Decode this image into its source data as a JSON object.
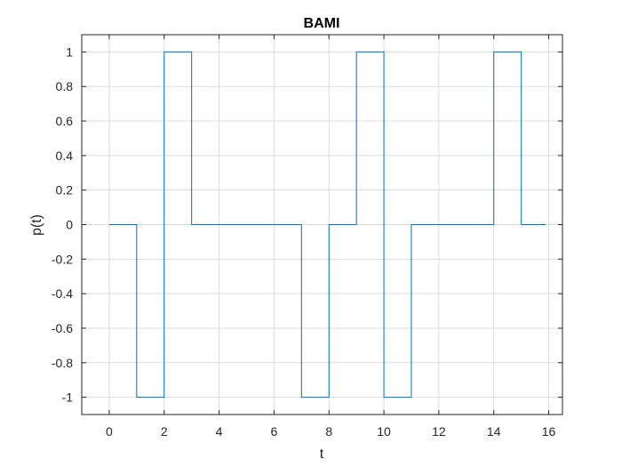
{
  "chart_data": {
    "type": "line",
    "step": "post",
    "title": "BAMI",
    "xlabel": "t",
    "ylabel": "p(t)",
    "xlim": [
      -1,
      16.5
    ],
    "ylim": [
      -1.1,
      1.1
    ],
    "grid": true,
    "box": true,
    "x_ticks": [
      0,
      2,
      4,
      6,
      8,
      10,
      12,
      14,
      16
    ],
    "y_ticks": [
      -1,
      -0.8,
      -0.6,
      -0.4,
      -0.2,
      0,
      0.2,
      0.4,
      0.6,
      0.8,
      1
    ],
    "x_tick_labels": [
      "0",
      "2",
      "4",
      "6",
      "8",
      "10",
      "12",
      "14",
      "16"
    ],
    "y_tick_labels": [
      "-1",
      "-0.8",
      "-0.6",
      "-0.4",
      "-0.2",
      "0",
      "0.2",
      "0.4",
      "0.6",
      "0.8",
      "1"
    ],
    "series": [
      {
        "color": "#0072bd",
        "x": [
          0,
          1,
          2,
          3,
          4,
          5,
          6,
          7,
          8,
          9,
          10,
          11,
          12,
          13,
          14,
          15,
          15.9
        ],
        "y": [
          0,
          -1,
          1,
          0,
          0,
          0,
          0,
          -1,
          0,
          1,
          -1,
          0,
          0,
          0,
          1,
          0,
          0
        ]
      }
    ]
  }
}
